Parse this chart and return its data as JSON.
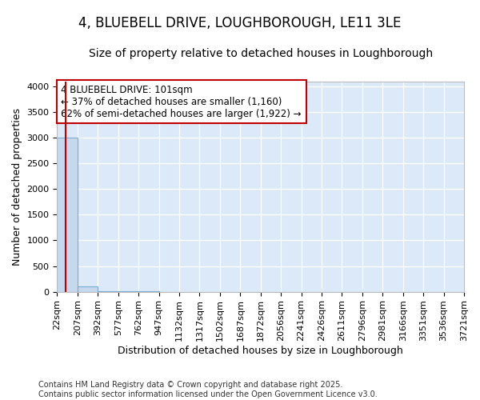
{
  "title": "4, BLUEBELL DRIVE, LOUGHBOROUGH, LE11 3LE",
  "subtitle": "Size of property relative to detached houses in Loughborough",
  "xlabel": "Distribution of detached houses by size in Loughborough",
  "ylabel": "Number of detached properties",
  "footer_line1": "Contains HM Land Registry data © Crown copyright and database right 2025.",
  "footer_line2": "Contains public sector information licensed under the Open Government Licence v3.0.",
  "annotation_line1": "4 BLUEBELL DRIVE: 101sqm",
  "annotation_line2": "← 37% of detached houses are smaller (1,160)",
  "annotation_line3": "62% of semi-detached houses are larger (1,922) →",
  "property_size": 101,
  "bin_edges": [
    22,
    207,
    392,
    577,
    762,
    947,
    1132,
    1317,
    1502,
    1687,
    1872,
    2056,
    2241,
    2426,
    2611,
    2796,
    2981,
    3166,
    3351,
    3536,
    3721
  ],
  "bar_values": [
    3000,
    100,
    5,
    3,
    2,
    1,
    1,
    1,
    0,
    0,
    0,
    0,
    0,
    0,
    0,
    0,
    0,
    0,
    0,
    0
  ],
  "bar_color": "#c5d8ee",
  "bar_edge_color": "#7badd4",
  "line_color": "#c00000",
  "ylim": [
    0,
    4100
  ],
  "yticks": [
    0,
    500,
    1000,
    1500,
    2000,
    2500,
    3000,
    3500,
    4000
  ],
  "background_color": "#dce9f8",
  "title_fontsize": 12,
  "subtitle_fontsize": 10,
  "axis_label_fontsize": 9,
  "tick_fontsize": 8,
  "footer_fontsize": 7,
  "annotation_fontsize": 8.5
}
